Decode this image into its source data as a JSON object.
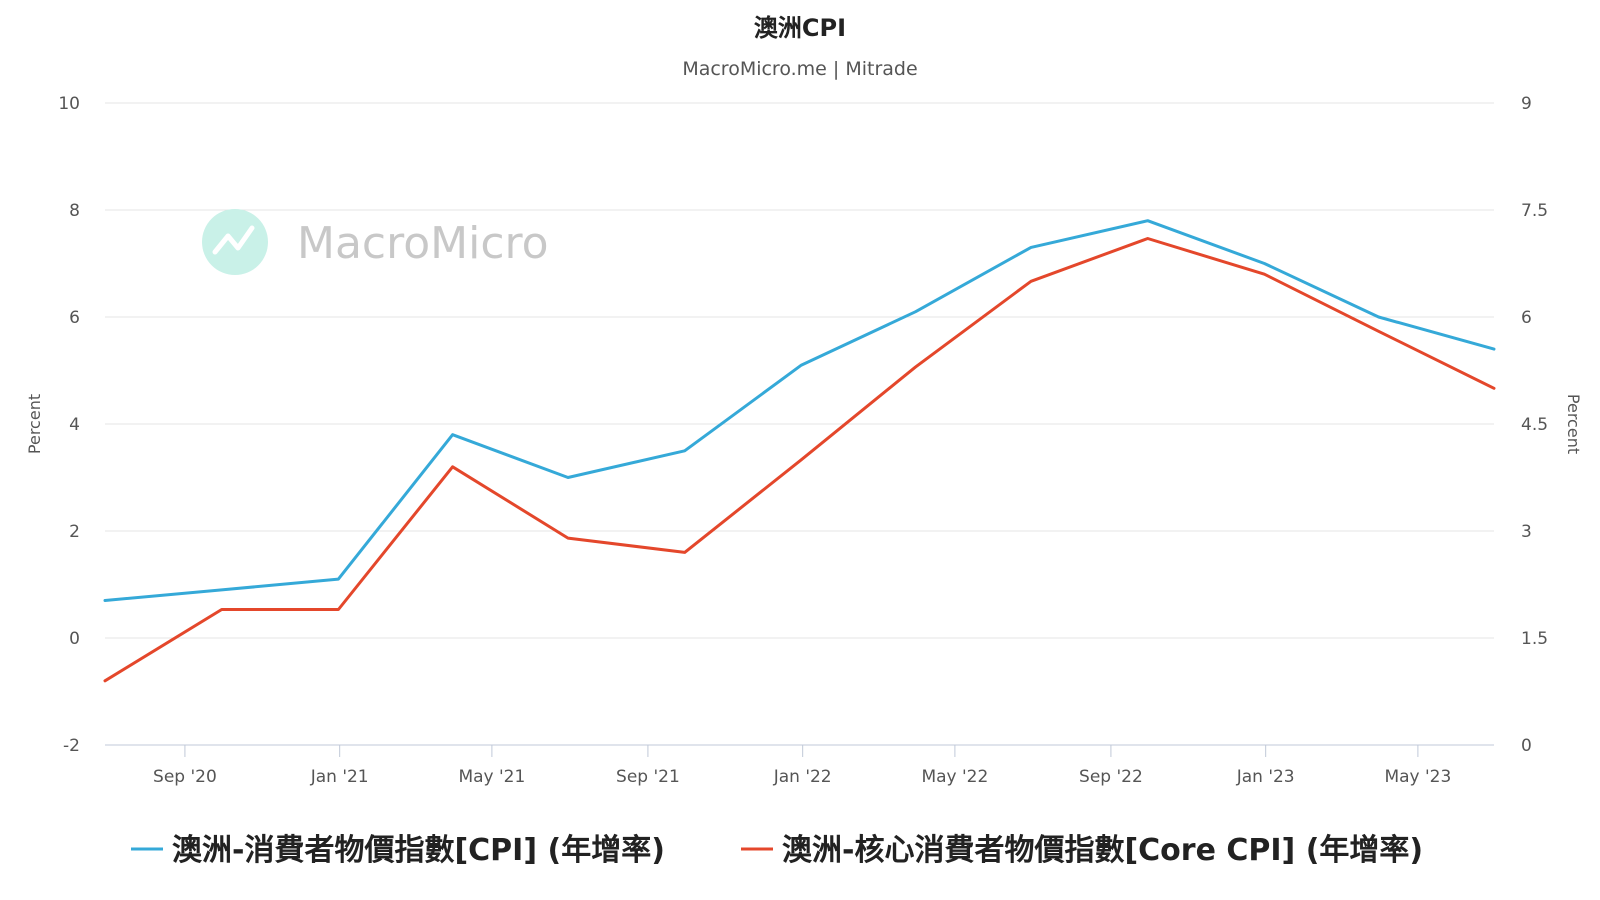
{
  "chart_data": {
    "type": "line",
    "title": "澳洲CPI",
    "subtitle": "MacroMicro.me | Mitrade",
    "watermark": "MacroMicro",
    "ylabel_left": "Percent",
    "ylabel_right": "Percent",
    "ylim_left": [
      -2,
      10
    ],
    "ylim_right": [
      0,
      9
    ],
    "yticks_left": [
      "-2",
      "0",
      "2",
      "4",
      "6",
      "8",
      "10"
    ],
    "yticks_right": [
      "0",
      "1.5",
      "3",
      "4.5",
      "6",
      "7.5",
      "9"
    ],
    "x_range": [
      "2020-06-30",
      "2023-06-30"
    ],
    "xticks": [
      {
        "date": "2020-09-01",
        "label": "Sep '20"
      },
      {
        "date": "2021-01-01",
        "label": "Jan '21"
      },
      {
        "date": "2021-05-01",
        "label": "May '21"
      },
      {
        "date": "2021-09-01",
        "label": "Sep '21"
      },
      {
        "date": "2022-01-01",
        "label": "Jan '22"
      },
      {
        "date": "2022-05-01",
        "label": "May '22"
      },
      {
        "date": "2022-09-01",
        "label": "Sep '22"
      },
      {
        "date": "2023-01-01",
        "label": "Jan '23"
      },
      {
        "date": "2023-05-01",
        "label": "May '23"
      }
    ],
    "grid": true,
    "legend_position": "bottom",
    "series": [
      {
        "name": "澳洲-消費者物價指數[CPI] (年增率)",
        "color": "#35a9d8",
        "axis": "left",
        "points": [
          {
            "x": "2020-06-30",
            "y": 0.7
          },
          {
            "x": "2020-09-30",
            "y": 0.9
          },
          {
            "x": "2020-12-31",
            "y": 1.1
          },
          {
            "x": "2021-03-31",
            "y": 3.8
          },
          {
            "x": "2021-06-30",
            "y": 3.0
          },
          {
            "x": "2021-09-30",
            "y": 3.5
          },
          {
            "x": "2021-12-31",
            "y": 5.1
          },
          {
            "x": "2022-03-31",
            "y": 6.1
          },
          {
            "x": "2022-06-30",
            "y": 7.3
          },
          {
            "x": "2022-09-30",
            "y": 7.8
          },
          {
            "x": "2022-12-31",
            "y": 7.0
          },
          {
            "x": "2023-03-31",
            "y": 6.0
          },
          {
            "x": "2023-06-30",
            "y": 5.4
          }
        ]
      },
      {
        "name": "澳洲-核心消費者物價指數[Core CPI] (年增率)",
        "color": "#e4472b",
        "axis": "right",
        "points": [
          {
            "x": "2020-06-30",
            "y": 0.9
          },
          {
            "x": "2020-09-30",
            "y": 1.9
          },
          {
            "x": "2020-12-31",
            "y": 1.9
          },
          {
            "x": "2021-03-31",
            "y": 3.9
          },
          {
            "x": "2021-06-30",
            "y": 2.9
          },
          {
            "x": "2021-09-30",
            "y": 2.7
          },
          {
            "x": "2021-12-31",
            "y": 4.0
          },
          {
            "x": "2022-03-31",
            "y": 5.3
          },
          {
            "x": "2022-06-30",
            "y": 6.5
          },
          {
            "x": "2022-09-30",
            "y": 7.1
          },
          {
            "x": "2022-12-31",
            "y": 6.6
          },
          {
            "x": "2023-03-31",
            "y": 5.8
          },
          {
            "x": "2023-06-30",
            "y": 5.0
          }
        ]
      }
    ]
  }
}
